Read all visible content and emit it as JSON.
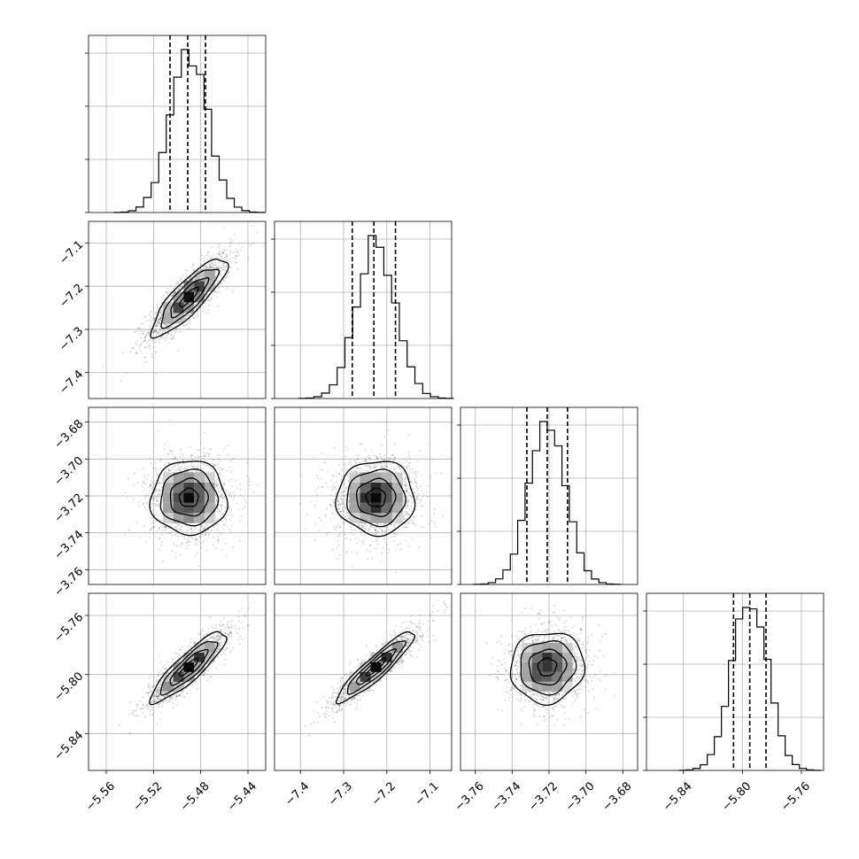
{
  "chart_data": {
    "type": "corner",
    "grid": true,
    "parameters": [
      {
        "index": 0,
        "center": -5.49,
        "sigma": 0.016,
        "range": [
          -5.575,
          -5.425
        ],
        "ticks": [
          -5.56,
          -5.52,
          -5.48,
          -5.44
        ],
        "tick_labels": [
          "−5.56",
          "−5.52",
          "−5.48",
          "−5.44"
        ],
        "quantiles": [
          -5.506,
          -5.491,
          -5.476
        ]
      },
      {
        "index": 1,
        "center": -7.225,
        "sigma": 0.045,
        "range": [
          -7.46,
          -7.05
        ],
        "ticks": [
          -7.4,
          -7.3,
          -7.2,
          -7.1
        ],
        "tick_labels": [
          "−7.4",
          "−7.3",
          "−7.2",
          "−7.1"
        ],
        "quantiles": [
          -7.28,
          -7.23,
          -7.18
        ]
      },
      {
        "index": 2,
        "center": -3.721,
        "sigma": 0.01,
        "range": [
          -3.768,
          -3.672
        ],
        "ticks": [
          -3.76,
          -3.74,
          -3.72,
          -3.7,
          -3.68
        ],
        "tick_labels": [
          "−3.76",
          "−3.74",
          "−3.72",
          "−3.70",
          "−3.68"
        ],
        "quantiles": [
          -3.732,
          -3.721,
          -3.71
        ]
      },
      {
        "index": 3,
        "center": -5.795,
        "sigma": 0.012,
        "range": [
          -5.865,
          -5.745
        ],
        "ticks": [
          -5.84,
          -5.8,
          -5.76
        ],
        "tick_labels": [
          "−5.84",
          "−5.80",
          "−5.76"
        ],
        "quantiles": [
          -5.806,
          -5.795,
          -5.784
        ]
      }
    ],
    "correlations": [
      [
        1.0,
        0.85,
        0.0,
        0.88
      ],
      [
        0.85,
        1.0,
        0.0,
        0.92
      ],
      [
        0.0,
        0.0,
        1.0,
        0.05
      ],
      [
        0.88,
        0.92,
        0.05,
        1.0
      ]
    ],
    "histogram_bins": 20,
    "contour_levels_sigma": [
      0.5,
      1.0,
      1.5,
      2.0
    ]
  }
}
